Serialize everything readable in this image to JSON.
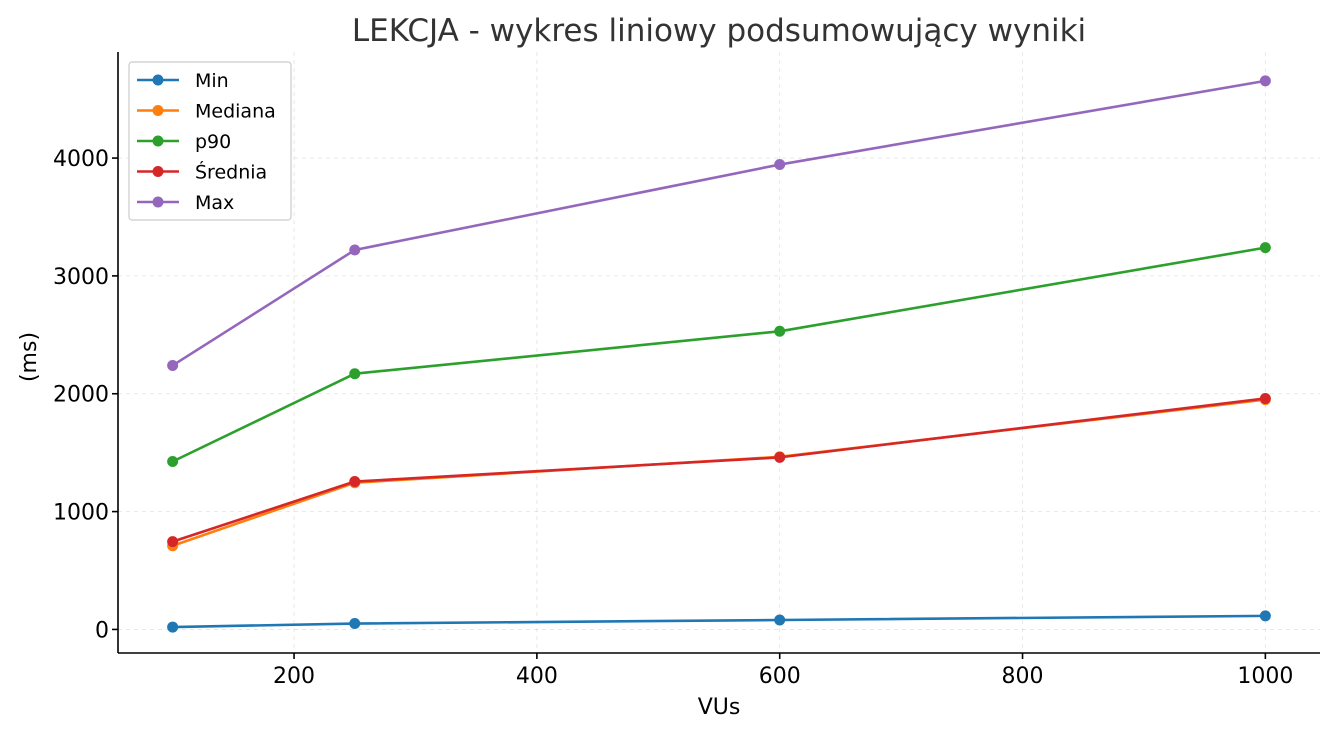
{
  "chart_data": {
    "type": "line",
    "title": "LEKCJA - wykres liniowy podsumowujący wyniki",
    "xlabel": "VUs",
    "ylabel": "(ms)",
    "x": [
      100,
      250,
      600,
      1000
    ],
    "xlim": [
      55,
      1045
    ],
    "ylim": [
      -200,
      4900
    ],
    "xticks": [
      200,
      400,
      600,
      800,
      1000
    ],
    "yticks": [
      0,
      1000,
      2000,
      3000,
      4000
    ],
    "grid": true,
    "legend_position": "top-left",
    "series": [
      {
        "name": "Min",
        "color": "#1f77b4",
        "values": [
          20,
          50,
          80,
          115
        ]
      },
      {
        "name": "Mediana",
        "color": "#ff7f0e",
        "values": [
          710,
          1245,
          1465,
          1950
        ]
      },
      {
        "name": "p90",
        "color": "#2ca02c",
        "values": [
          1425,
          2170,
          2530,
          3240
        ]
      },
      {
        "name": "Średnia",
        "color": "#d62728",
        "values": [
          745,
          1255,
          1460,
          1960
        ]
      },
      {
        "name": "Max",
        "color": "#9467bd",
        "values": [
          2240,
          3220,
          3945,
          4655
        ]
      }
    ]
  }
}
